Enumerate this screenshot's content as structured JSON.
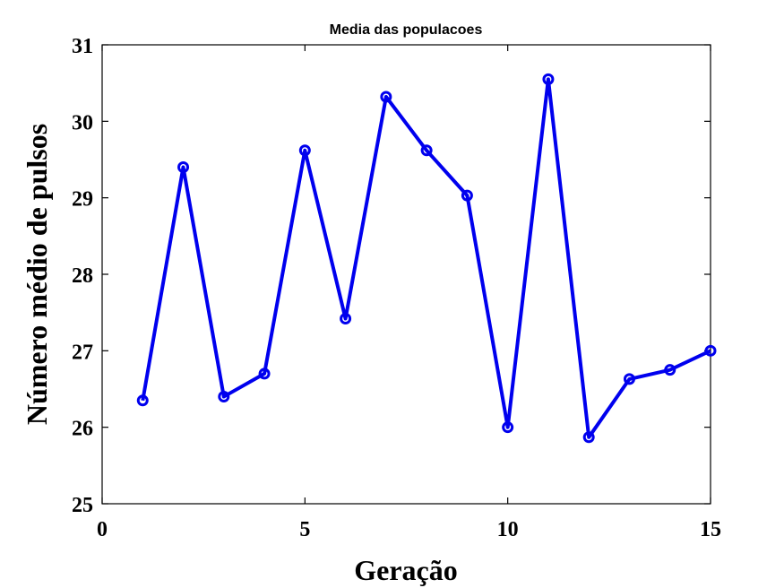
{
  "chart_data": {
    "type": "line",
    "title": "Media das populacoes",
    "xlabel": "Geração",
    "ylabel": "Número médio de pulsos",
    "xlim": [
      0,
      15
    ],
    "ylim": [
      25,
      31
    ],
    "xticks": [
      0,
      5,
      10,
      15
    ],
    "yticks": [
      25,
      26,
      27,
      28,
      29,
      30,
      31
    ],
    "grid": false,
    "marker": "circle",
    "line_color": "#0000ee",
    "series": [
      {
        "x": [
          1,
          2,
          3,
          4,
          5,
          6,
          7,
          8,
          9,
          10,
          11,
          12,
          13,
          14,
          15
        ],
        "y": [
          26.35,
          29.4,
          26.4,
          26.7,
          29.62,
          27.42,
          30.32,
          29.62,
          29.03,
          26.0,
          30.55,
          25.87,
          26.63,
          26.75,
          27.0
        ]
      }
    ]
  }
}
